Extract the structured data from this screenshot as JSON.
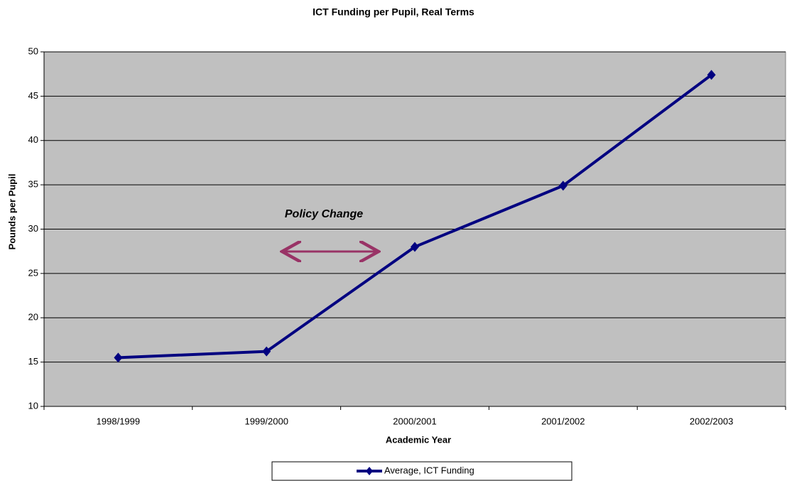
{
  "chart_data": {
    "type": "line",
    "title": "ICT Funding per Pupil, Real Terms",
    "x_label": "Academic Year",
    "y_label": "Pounds per Pupil",
    "categories": [
      "1998/1999",
      "1999/2000",
      "2000/2001",
      "2001/2002",
      "2002/2003"
    ],
    "series": [
      {
        "name": "Average, ICT Funding",
        "color": "#000080",
        "values": [
          15.5,
          16.2,
          28,
          34.9,
          47.4
        ]
      }
    ],
    "ylim": [
      10,
      50
    ],
    "yticks": [
      10,
      15,
      20,
      25,
      30,
      35,
      40,
      45,
      50
    ],
    "grid": true,
    "annotation": "Policy Change",
    "legend": "bottom"
  }
}
